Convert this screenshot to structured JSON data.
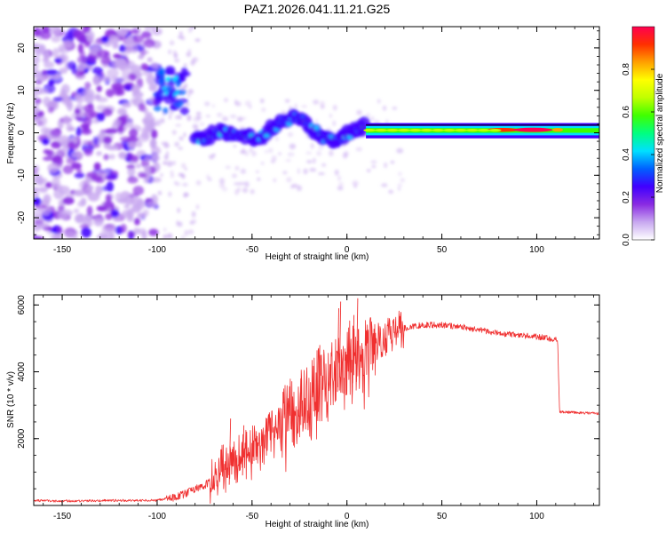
{
  "title": "PAZ1.2026.041.11.21.G25",
  "chart_data": [
    {
      "type": "heatmap",
      "name": "spectrogram",
      "xlabel": "Height of straight line (km)",
      "ylabel": "Frequency (Hz)",
      "xlim": [
        -165,
        133
      ],
      "ylim": [
        -25,
        25
      ],
      "xticks": [
        -150,
        -100,
        -50,
        0,
        50,
        100
      ],
      "yticks": [
        -20,
        -10,
        0,
        10,
        20
      ],
      "colorbar": {
        "label": "Normalized spectral amplitude",
        "range": [
          0,
          1
        ],
        "ticks": [
          0.0,
          0.2,
          0.4,
          0.6,
          0.8
        ],
        "colors": [
          "#ffffff",
          "#c8a8f0",
          "#8a2be2",
          "#4000ff",
          "#0060ff",
          "#00e0ff",
          "#00ff80",
          "#40ff00",
          "#c0ff00",
          "#ffff00",
          "#ffa000",
          "#ff3000",
          "#ff0050"
        ]
      },
      "regions": [
        {
          "x": [
            -165,
            -100
          ],
          "f": [
            -25,
            25
          ],
          "pattern": "scattered noise",
          "amp": 0.1
        },
        {
          "x": [
            -100,
            -85
          ],
          "f": [
            5,
            15
          ],
          "pattern": "cluster",
          "amp": 0.4
        },
        {
          "x": [
            -100,
            -80
          ],
          "f": [
            -25,
            25
          ],
          "pattern": "sparse noise",
          "amp": 0.05
        },
        {
          "x": [
            -80,
            10
          ],
          "f": [
            -5,
            5
          ],
          "pattern": "wandering tone",
          "amp": 0.3
        },
        {
          "x": [
            10,
            133
          ],
          "f": [
            0,
            2
          ],
          "pattern": "steady tone",
          "amp": 0.6
        }
      ]
    },
    {
      "type": "line",
      "name": "snr",
      "xlabel": "Height of straight line (km)",
      "ylabel": "SNR (10 * v/v)",
      "xlim": [
        -165,
        133
      ],
      "ylim": [
        0,
        6300
      ],
      "xticks": [
        -150,
        -100,
        -50,
        0,
        50,
        100
      ],
      "yticks": [
        2000,
        4000,
        6000
      ],
      "color": "#f03030",
      "series": [
        {
          "name": "SNR",
          "x": [
            -165,
            -150,
            -125,
            -100,
            -90,
            -85,
            -80,
            -75,
            -72,
            -70,
            -68,
            -65,
            -60,
            -55,
            -50,
            -45,
            -40,
            -35,
            -30,
            -25,
            -20,
            -15,
            -10,
            -5,
            0,
            5,
            10,
            15,
            20,
            25,
            30,
            35,
            40,
            50,
            60,
            70,
            80,
            90,
            100,
            111,
            112,
            120,
            133
          ],
          "values": [
            150,
            130,
            150,
            150,
            250,
            350,
            500,
            600,
            800,
            1000,
            1100,
            1300,
            1500,
            1700,
            1800,
            1900,
            2200,
            2500,
            2700,
            3000,
            3300,
            3600,
            3900,
            4200,
            4400,
            4500,
            4600,
            4800,
            5000,
            5200,
            5300,
            5350,
            5400,
            5400,
            5350,
            5250,
            5150,
            5100,
            5050,
            4950,
            2800,
            2780,
            2750
          ]
        }
      ],
      "spikes": [
        {
          "x": -62,
          "y": 2600
        },
        {
          "x": -55,
          "y": 2400
        },
        {
          "x": -25,
          "y": 3800
        },
        {
          "x": -15,
          "y": 4800
        },
        {
          "x": -5,
          "y": 5900
        },
        {
          "x": -4,
          "y": 6100
        },
        {
          "x": 3,
          "y": 5700
        },
        {
          "x": 5,
          "y": 6200
        }
      ]
    }
  ]
}
